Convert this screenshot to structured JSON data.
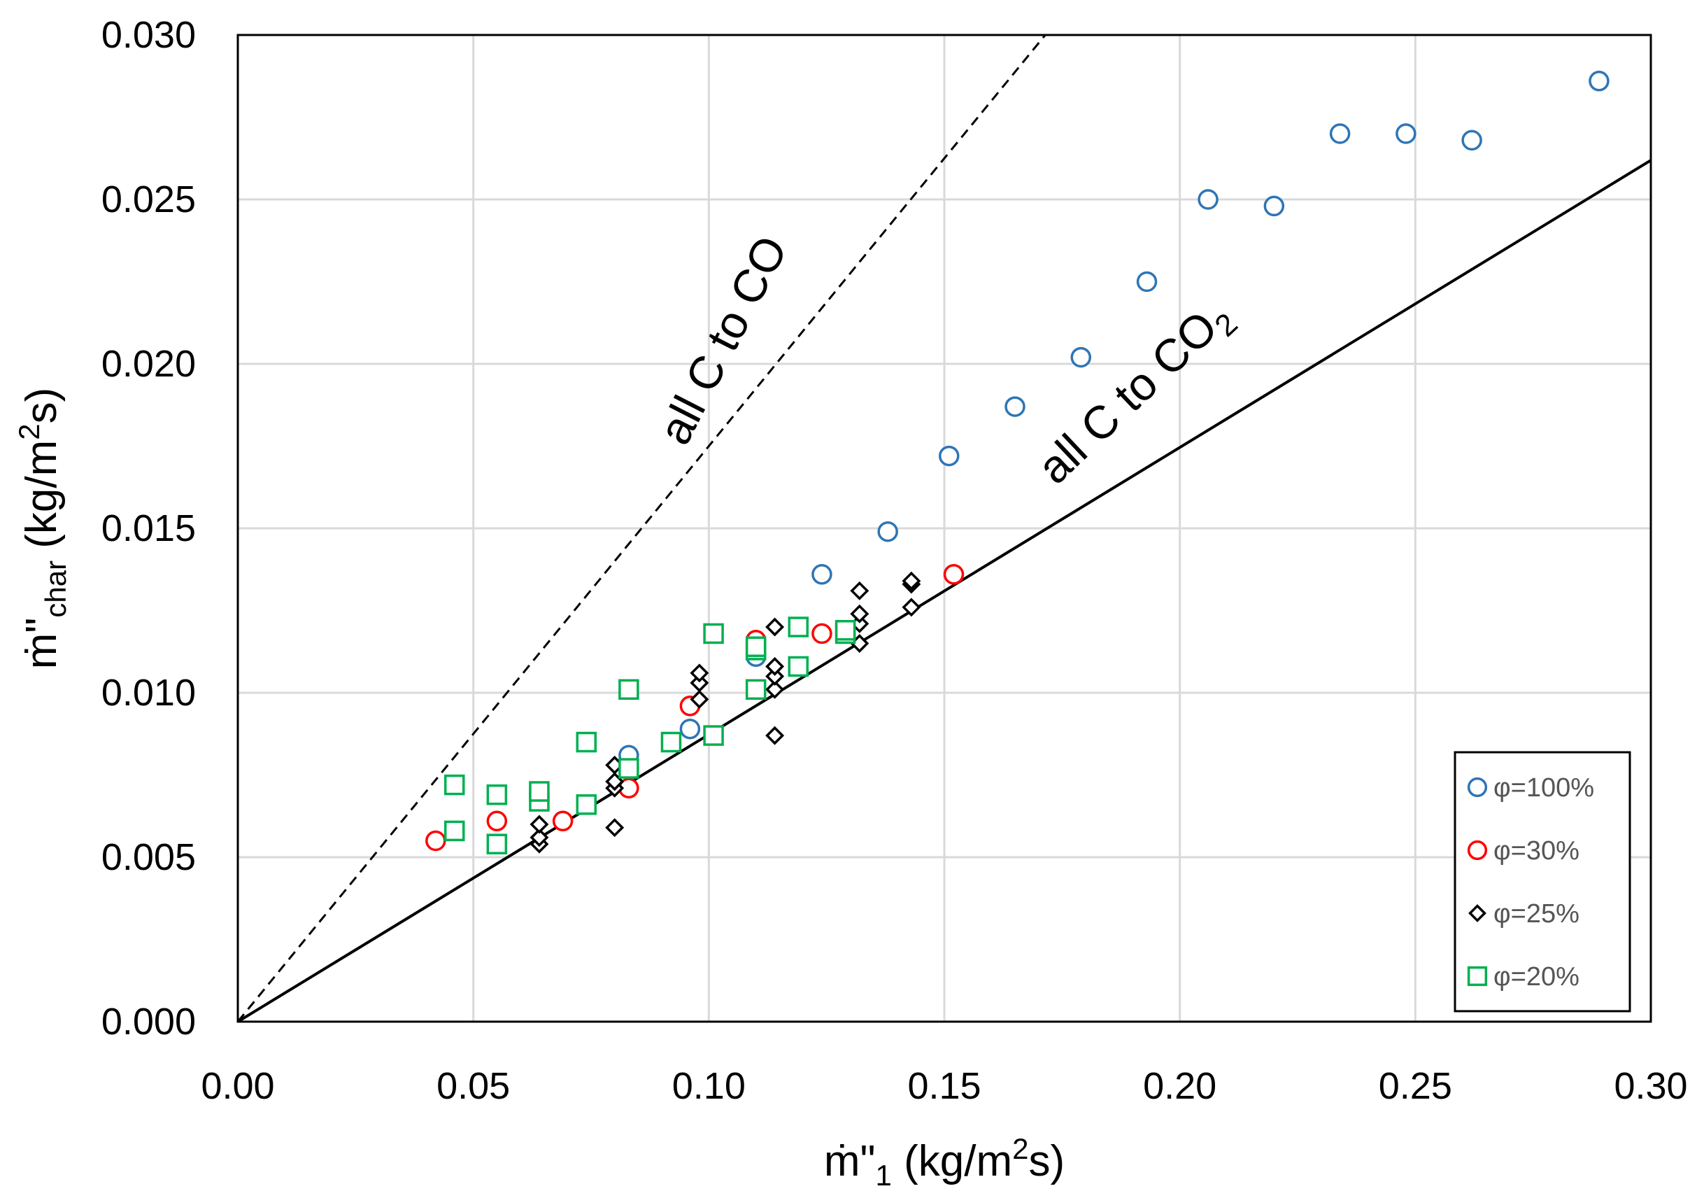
{
  "chart_data": {
    "type": "scatter",
    "title": "",
    "xlabel": "ṁ\"₁ (kg/m²s)",
    "ylabel": "ṁ\"char (kg/m²s)",
    "xlabel_parts": {
      "base": "ṁ\"",
      "sub": "1",
      "unit_pre": " (kg/m",
      "unit_sup": "2",
      "unit_post": "s)"
    },
    "ylabel_parts": {
      "base": "ṁ\"",
      "sub": "char",
      "unit_pre": " (kg/m",
      "unit_sup": "2",
      "unit_post": "s)"
    },
    "xlim": [
      0,
      0.3
    ],
    "ylim": [
      0,
      0.03
    ],
    "x_ticks": [
      0.0,
      0.05,
      0.1,
      0.15,
      0.2,
      0.25,
      0.3
    ],
    "y_ticks": [
      0.0,
      0.005,
      0.01,
      0.015,
      0.02,
      0.025,
      0.03
    ],
    "x_tick_labels": [
      "0.00",
      "0.05",
      "0.10",
      "0.15",
      "0.20",
      "0.25",
      "0.30"
    ],
    "y_tick_labels": [
      "0.000",
      "0.005",
      "0.010",
      "0.015",
      "0.020",
      "0.025",
      "0.030"
    ],
    "grid": true,
    "legend_position": "bottom-right",
    "reference_lines": [
      {
        "name": "all C to CO",
        "label_main": "all C to CO",
        "label_sub": "",
        "slope": 0.175,
        "style": "dashed",
        "color": "#000000"
      },
      {
        "name": "all C to CO2",
        "label_main": "all C to CO",
        "label_sub": "2",
        "slope": 0.0873,
        "style": "solid",
        "color": "#000000"
      }
    ],
    "series": [
      {
        "name": "φ=100%",
        "marker": "circle",
        "color": "#2e75b6",
        "points": [
          [
            0.083,
            0.0081
          ],
          [
            0.096,
            0.0089
          ],
          [
            0.11,
            0.0111
          ],
          [
            0.124,
            0.0136
          ],
          [
            0.138,
            0.0149
          ],
          [
            0.151,
            0.0172
          ],
          [
            0.165,
            0.0187
          ],
          [
            0.179,
            0.0202
          ],
          [
            0.193,
            0.0225
          ],
          [
            0.206,
            0.025
          ],
          [
            0.22,
            0.0248
          ],
          [
            0.234,
            0.027
          ],
          [
            0.248,
            0.027
          ],
          [
            0.262,
            0.0268
          ],
          [
            0.289,
            0.0286
          ]
        ]
      },
      {
        "name": "φ=30%",
        "marker": "circle",
        "color": "#ff0000",
        "points": [
          [
            0.042,
            0.0055
          ],
          [
            0.055,
            0.0061
          ],
          [
            0.069,
            0.0061
          ],
          [
            0.083,
            0.0071
          ],
          [
            0.096,
            0.0096
          ],
          [
            0.11,
            0.0116
          ],
          [
            0.124,
            0.0118
          ],
          [
            0.152,
            0.0136
          ]
        ]
      },
      {
        "name": "φ=25%",
        "marker": "diamond",
        "color": "#000000",
        "points": [
          [
            0.064,
            0.0054
          ],
          [
            0.064,
            0.0056
          ],
          [
            0.064,
            0.006
          ],
          [
            0.08,
            0.0059
          ],
          [
            0.08,
            0.0071
          ],
          [
            0.08,
            0.0073
          ],
          [
            0.08,
            0.0078
          ],
          [
            0.098,
            0.0098
          ],
          [
            0.098,
            0.0103
          ],
          [
            0.098,
            0.0106
          ],
          [
            0.114,
            0.0087
          ],
          [
            0.114,
            0.0101
          ],
          [
            0.114,
            0.0105
          ],
          [
            0.114,
            0.0108
          ],
          [
            0.114,
            0.012
          ],
          [
            0.132,
            0.0115
          ],
          [
            0.132,
            0.0121
          ],
          [
            0.132,
            0.0124
          ],
          [
            0.132,
            0.0131
          ],
          [
            0.143,
            0.0126
          ],
          [
            0.143,
            0.0133
          ],
          [
            0.143,
            0.0134
          ]
        ]
      },
      {
        "name": "φ=20%",
        "marker": "square",
        "color": "#00b050",
        "points": [
          [
            0.046,
            0.0058
          ],
          [
            0.046,
            0.0072
          ],
          [
            0.055,
            0.0054
          ],
          [
            0.055,
            0.0069
          ],
          [
            0.064,
            0.0067
          ],
          [
            0.064,
            0.007
          ],
          [
            0.074,
            0.0066
          ],
          [
            0.074,
            0.0085
          ],
          [
            0.083,
            0.0077
          ],
          [
            0.083,
            0.0101
          ],
          [
            0.092,
            0.0085
          ],
          [
            0.101,
            0.0087
          ],
          [
            0.101,
            0.0118
          ],
          [
            0.11,
            0.0101
          ],
          [
            0.11,
            0.0113
          ],
          [
            0.11,
            0.0114
          ],
          [
            0.119,
            0.0108
          ],
          [
            0.119,
            0.012
          ],
          [
            0.129,
            0.0118
          ],
          [
            0.129,
            0.0119
          ]
        ]
      }
    ]
  }
}
